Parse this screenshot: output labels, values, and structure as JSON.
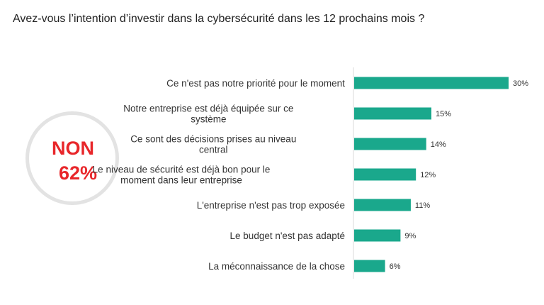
{
  "title": "Avez-vous l’intention d’investir dans la cybersécurité dans les 12 prochains mois ?",
  "callout": {
    "line1": "NON",
    "line2": "62%"
  },
  "colors": {
    "bar": "#1aa88c",
    "callout": "#e8262a",
    "ring": "#e3e3e3"
  },
  "chart_data": {
    "type": "bar",
    "orientation": "horizontal",
    "categories": [
      [
        "Ce n'est pas notre priorité pour le moment"
      ],
      [
        "Notre entreprise est déjà équipée sur ce",
        "système"
      ],
      [
        "Ce sont des décisions prises au niveau",
        "central"
      ],
      [
        "Le niveau de sécurité est déjà bon pour le",
        "moment dans leur entreprise"
      ],
      [
        "L'entreprise n'est pas trop exposée"
      ],
      [
        "Le budget n'est pas adapté"
      ],
      [
        "La méconnaissance de la chose"
      ]
    ],
    "values": [
      30,
      15,
      14,
      12,
      11,
      9,
      6
    ],
    "value_labels": [
      "30%",
      "15%",
      "14%",
      "12%",
      "11%",
      "9%",
      "6%"
    ],
    "xlim": [
      0,
      30
    ],
    "grid": false,
    "legend": "none"
  }
}
